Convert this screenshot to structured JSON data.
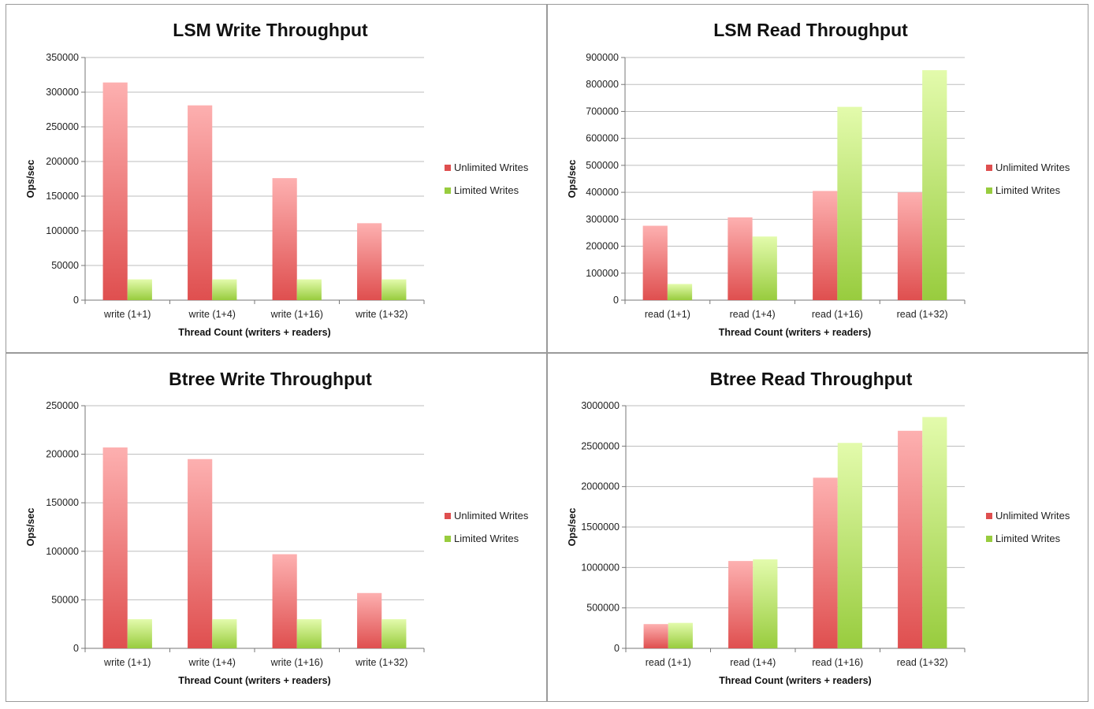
{
  "colors": {
    "unlimited_top": "#fdb0b0",
    "unlimited_bottom": "#df4f4f",
    "limited_top": "#e3fbac",
    "limited_bottom": "#98cc3e",
    "gridline": "#bdbdbd"
  },
  "chart_data": [
    {
      "type": "bar",
      "title": "LSM Write Throughput",
      "xlabel": "Thread Count (writers + readers)",
      "ylabel": "Ops/sec",
      "ylim": [
        0,
        350000
      ],
      "yticks": [
        0,
        50000,
        100000,
        150000,
        200000,
        250000,
        300000,
        350000
      ],
      "ytick_labels": [
        "0",
        "50000",
        "100000",
        "150000",
        "200000",
        "250000",
        "300000",
        "350000"
      ],
      "categories": [
        "write (1+1)",
        "write (1+4)",
        "write (1+16)",
        "write (1+32)"
      ],
      "series": [
        {
          "name": "Unlimited Writes",
          "values": [
            314000,
            281000,
            176000,
            111000
          ]
        },
        {
          "name": "Limited Writes",
          "values": [
            30000,
            30000,
            30000,
            30000
          ]
        }
      ],
      "legend": "right"
    },
    {
      "type": "bar",
      "title": "LSM Read Throughput",
      "xlabel": "Thread Count (writers + readers)",
      "ylabel": "Ops/sec",
      "ylim": [
        0,
        900000
      ],
      "yticks": [
        0,
        100000,
        200000,
        300000,
        400000,
        500000,
        600000,
        700000,
        800000,
        900000
      ],
      "ytick_labels": [
        "0",
        "100000",
        "200000",
        "300000",
        "400000",
        "500000",
        "600000",
        "700000",
        "800000",
        "900000"
      ],
      "categories": [
        "read (1+1)",
        "read (1+4)",
        "read (1+16)",
        "read (1+32)"
      ],
      "series": [
        {
          "name": "Unlimited Writes",
          "values": [
            276000,
            307000,
            405000,
            400000
          ]
        },
        {
          "name": "Limited Writes",
          "values": [
            60000,
            236000,
            717000,
            853000
          ]
        }
      ],
      "legend": "right"
    },
    {
      "type": "bar",
      "title": "Btree Write Throughput",
      "xlabel": "Thread Count (writers + readers)",
      "ylabel": "Ops/sec",
      "ylim": [
        0,
        250000
      ],
      "yticks": [
        0,
        50000,
        100000,
        150000,
        200000,
        250000
      ],
      "ytick_labels": [
        "0",
        "50000",
        "100000",
        "150000",
        "200000",
        "250000"
      ],
      "categories": [
        "write (1+1)",
        "write (1+4)",
        "write (1+16)",
        "write (1+32)"
      ],
      "series": [
        {
          "name": "Unlimited Writes",
          "values": [
            207000,
            195000,
            97000,
            57000
          ]
        },
        {
          "name": "Limited Writes",
          "values": [
            30000,
            30000,
            30000,
            30000
          ]
        }
      ],
      "legend": "right"
    },
    {
      "type": "bar",
      "title": "Btree Read Throughput",
      "xlabel": "Thread Count (writers + readers)",
      "ylabel": "Ops/sec",
      "ylim": [
        0,
        3000000
      ],
      "yticks": [
        0,
        500000,
        1000000,
        1500000,
        2000000,
        2500000,
        3000000
      ],
      "ytick_labels": [
        "0",
        "500000",
        "1000000",
        "1500000",
        "2000000",
        "2500000",
        "3000000"
      ],
      "categories": [
        "read (1+1)",
        "read (1+4)",
        "read (1+16)",
        "read (1+32)"
      ],
      "series": [
        {
          "name": "Unlimited Writes",
          "values": [
            300000,
            1080000,
            2110000,
            2690000
          ]
        },
        {
          "name": "Limited Writes",
          "values": [
            315000,
            1100000,
            2540000,
            2860000
          ]
        }
      ],
      "legend": "right"
    }
  ]
}
